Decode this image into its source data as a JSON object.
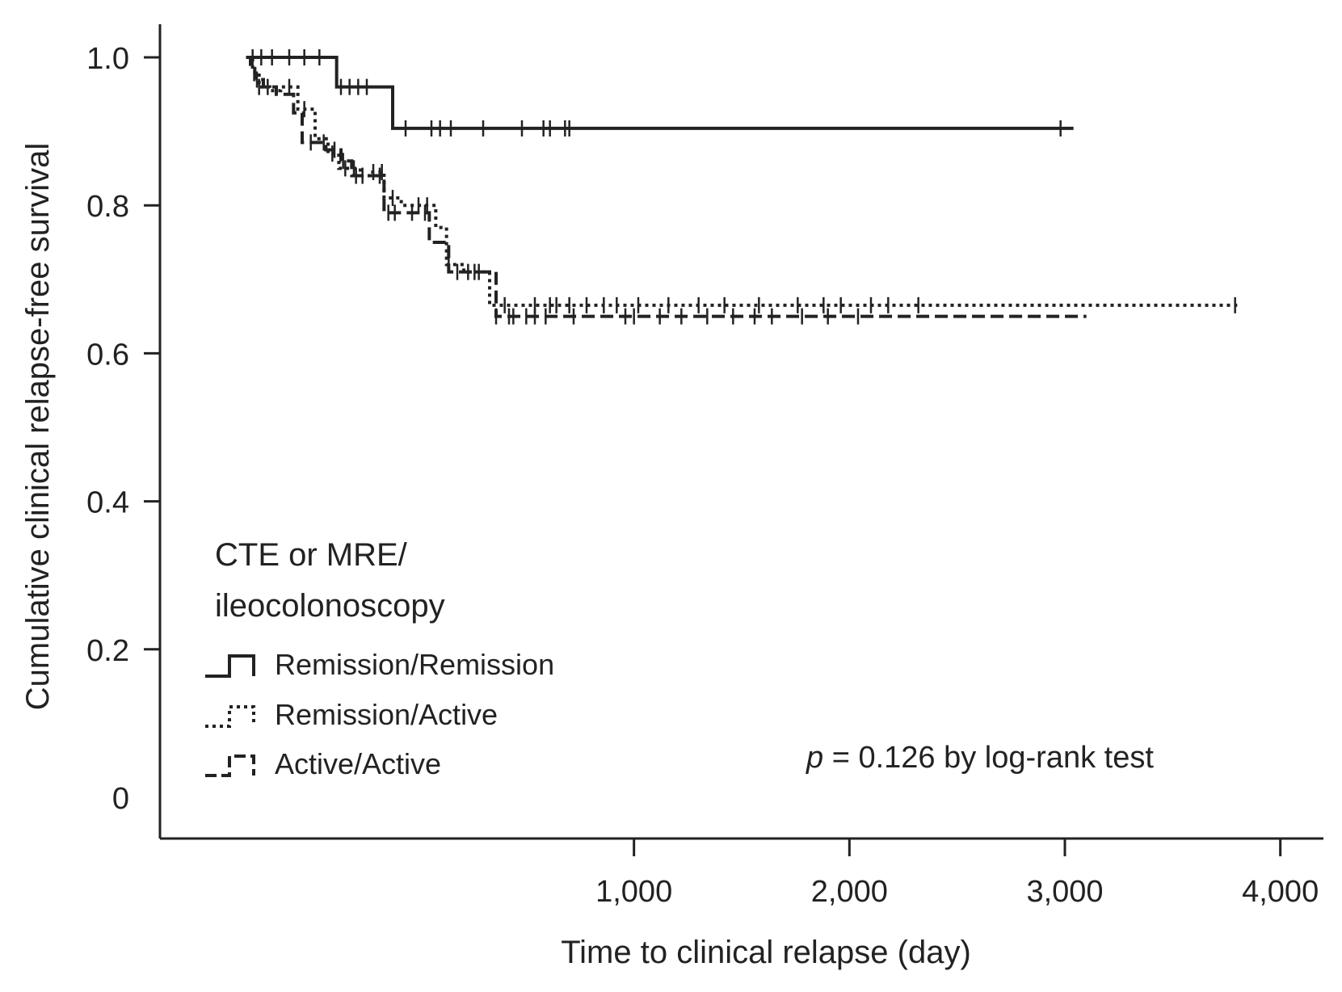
{
  "chart_data": {
    "type": "line",
    "title": "",
    "xlabel": "Time to clinical relapse (day)",
    "ylabel": "Cumulative clinical relapse-free survival",
    "xlim": [
      -1200,
      4200
    ],
    "ylim": [
      0,
      1.06
    ],
    "x_ticks": [
      1000,
      2000,
      3000,
      4000
    ],
    "x_tick_labels": [
      "1,000",
      "2,000",
      "3,000",
      "4,000"
    ],
    "y_ticks": [
      0,
      0.2,
      0.4,
      0.6,
      0.8,
      1.0
    ],
    "y_tick_labels": [
      "0",
      "0.2",
      "0.4",
      "0.6",
      "0.8",
      "1.0"
    ],
    "grid": false,
    "legend": {
      "title_lines": [
        "CTE or MRE/",
        "ileocolonoscopy"
      ],
      "position": "bottom-left"
    },
    "annotation": {
      "p_symbol": "p",
      "text": " = 0.126 by log-rank test"
    },
    "series": [
      {
        "name": "Remission/Remission",
        "style": "solid",
        "step_x": [
          -800,
          -380,
          -120,
          3040
        ],
        "step_y": [
          1.0,
          0.96,
          0.904,
          0.904
        ],
        "censor_x": [
          -770,
          -730,
          -680,
          -600,
          -530,
          -460,
          -360,
          -320,
          -280,
          -240,
          -60,
          60,
          100,
          150,
          300,
          480,
          580,
          610,
          680,
          700,
          2980
        ]
      },
      {
        "name": "Remission/Active",
        "style": "dotted",
        "step_x": [
          -800,
          -770,
          -740,
          -690,
          -640,
          -560,
          -500,
          -480,
          -420,
          -370,
          -270,
          -220,
          -160,
          -80,
          80,
          130,
          210,
          330,
          3800
        ],
        "step_y": [
          1.0,
          0.98,
          0.96,
          0.955,
          0.96,
          0.93,
          0.93,
          0.89,
          0.87,
          0.85,
          0.84,
          0.845,
          0.81,
          0.8,
          0.77,
          0.72,
          0.71,
          0.665,
          0.665
        ],
        "censor_x": [
          -740,
          -600,
          -530,
          -400,
          -340,
          -300,
          -260,
          -210,
          -170,
          -120,
          0,
          40,
          140,
          260,
          400,
          540,
          610,
          640,
          700,
          780,
          860,
          920,
          1020,
          1160,
          1300,
          1420,
          1580,
          1760,
          1880,
          1960,
          2100,
          2180,
          2320,
          3790
        ]
      },
      {
        "name": "Active/Active",
        "style": "dashed",
        "step_x": [
          -800,
          -780,
          -760,
          -720,
          -660,
          -580,
          -540,
          -430,
          -360,
          -310,
          -160,
          -60,
          50,
          140,
          360,
          3100
        ],
        "step_y": [
          1.0,
          0.985,
          0.97,
          0.96,
          0.95,
          0.925,
          0.885,
          0.875,
          0.86,
          0.84,
          0.79,
          0.79,
          0.75,
          0.71,
          0.65,
          0.65
        ],
        "censor_x": [
          -750,
          -700,
          -500,
          -440,
          -390,
          -350,
          -290,
          -180,
          -140,
          -110,
          -30,
          30,
          180,
          230,
          280,
          360,
          420,
          440,
          500,
          540,
          590,
          720,
          960,
          1000,
          1120,
          1220,
          1340,
          1460,
          1560,
          1640,
          1780,
          1900,
          2040
        ]
      }
    ]
  }
}
